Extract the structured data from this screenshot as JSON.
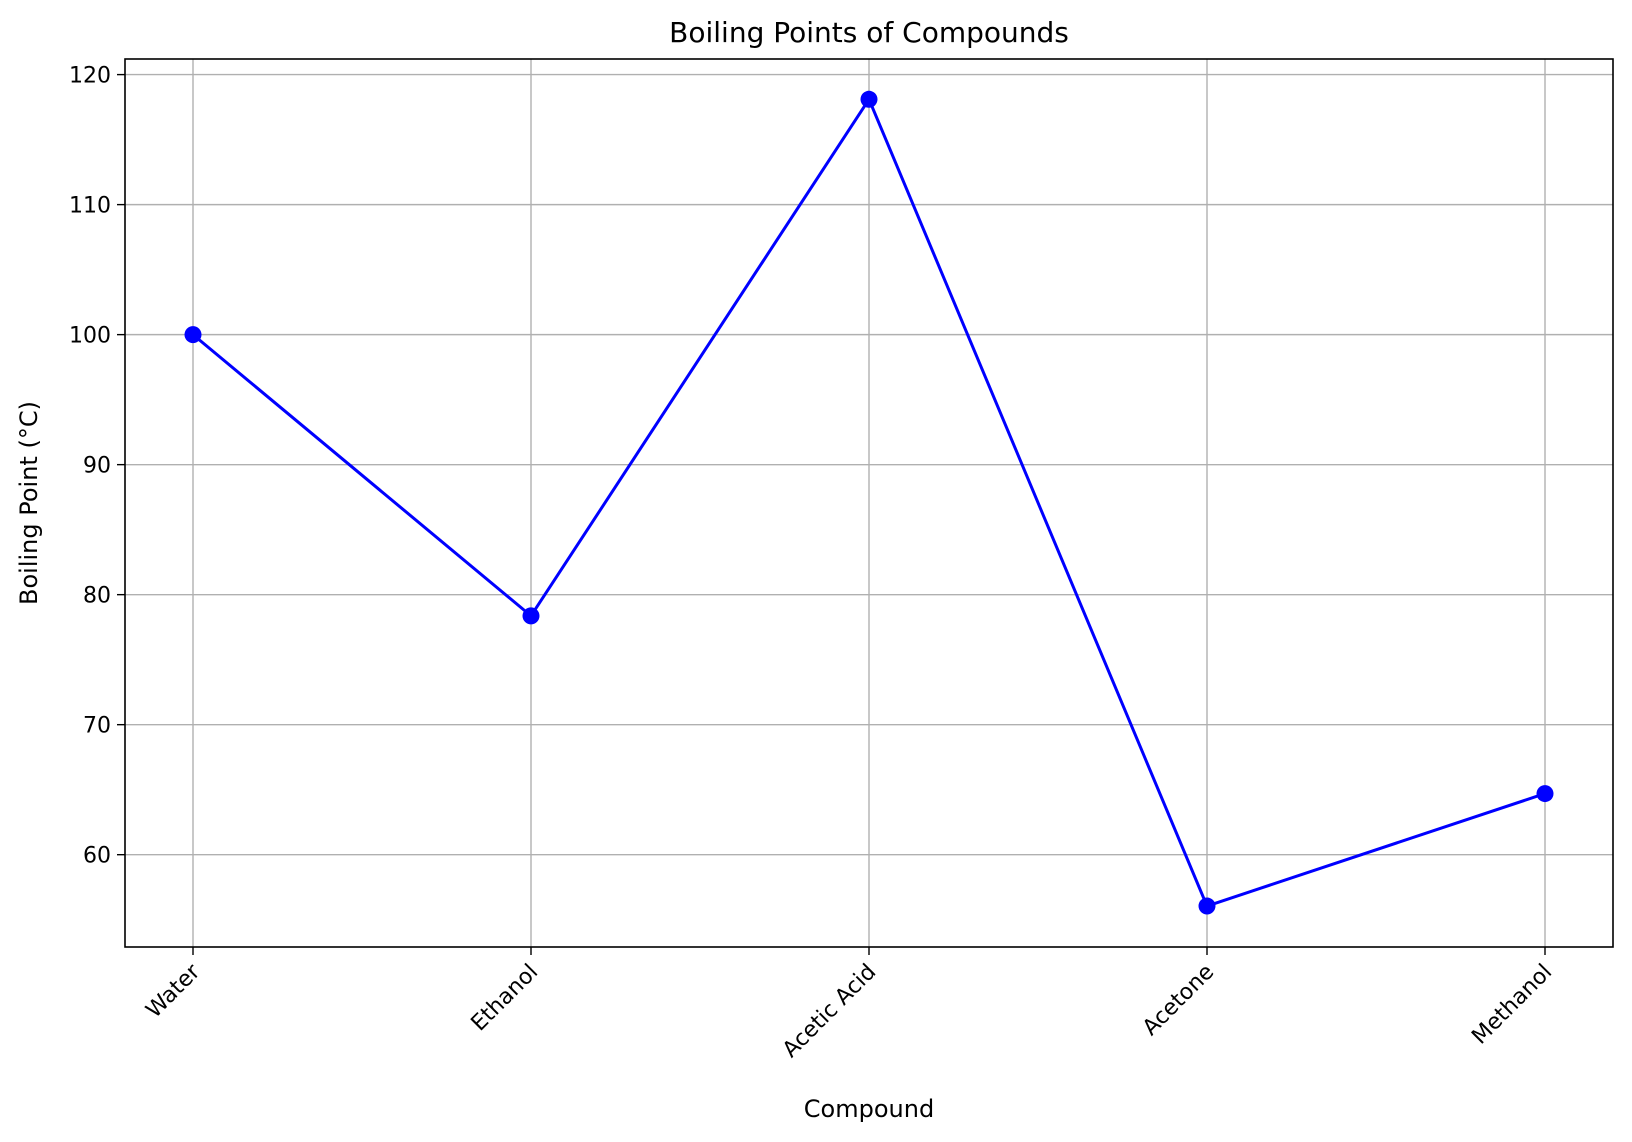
{
  "chart_data": {
    "type": "line",
    "title": "Boiling Points of Compounds",
    "xlabel": "Compound",
    "ylabel": "Boiling Point (°C)",
    "categories": [
      "Water",
      "Ethanol",
      "Acetic Acid",
      "Acetone",
      "Methanol"
    ],
    "series": [
      {
        "values": [
          100,
          78.37,
          118.1,
          56.05,
          64.7
        ],
        "color": "#0000ff",
        "marker": "circle"
      }
    ],
    "ylim": [
      52.9,
      121.2
    ],
    "yticks": [
      60,
      70,
      80,
      90,
      100,
      110,
      120
    ],
    "grid": true,
    "x_tick_rotation": 45,
    "grid_color": "#b0b0b0"
  }
}
